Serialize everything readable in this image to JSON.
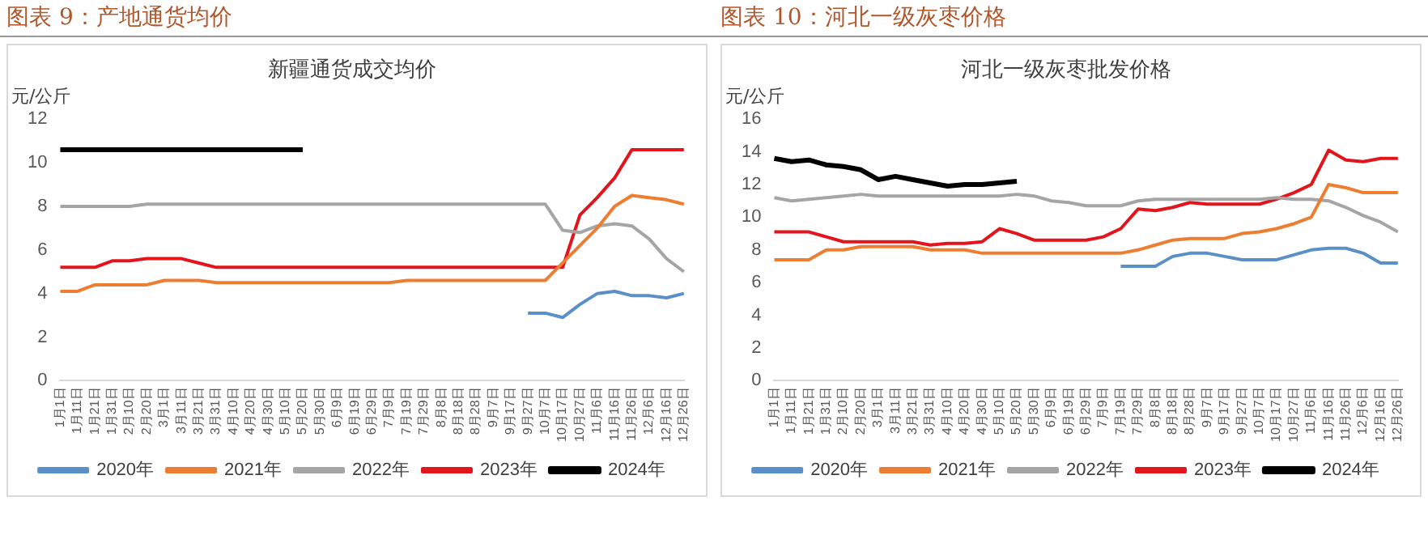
{
  "chart_data": [
    {
      "type": "line",
      "title": "图表 9：产地通货均价",
      "subtitle": "新疆通货成交均价",
      "ylabel": "元/公斤",
      "categories": [
        "1月1日",
        "1月11日",
        "1月21日",
        "1月31日",
        "2月10日",
        "2月20日",
        "3月1日",
        "3月11日",
        "3月21日",
        "3月31日",
        "4月10日",
        "4月20日",
        "4月30日",
        "5月10日",
        "5月20日",
        "5月30日",
        "6月9日",
        "6月19日",
        "6月29日",
        "7月9日",
        "7月19日",
        "7月29日",
        "8月8日",
        "8月18日",
        "8月28日",
        "9月7日",
        "9月17日",
        "9月27日",
        "10月7日",
        "10月17日",
        "10月27日",
        "11月6日",
        "11月16日",
        "11月26日",
        "12月6日",
        "12月16日",
        "12月26日"
      ],
      "ylim": [
        0,
        12
      ],
      "yticks": [
        0,
        2,
        4,
        6,
        8,
        10,
        12
      ],
      "grid": false,
      "legend": "bottom",
      "marker": "none",
      "line_style": "solid",
      "series": [
        {
          "name": "2020年",
          "color": "#5b8fc7",
          "values": [
            null,
            null,
            null,
            null,
            null,
            null,
            null,
            null,
            null,
            null,
            null,
            null,
            null,
            null,
            null,
            null,
            null,
            null,
            null,
            null,
            null,
            null,
            null,
            null,
            null,
            null,
            null,
            3.1,
            3.1,
            2.9,
            3.5,
            4.0,
            4.1,
            3.9,
            3.9,
            3.8,
            4.0
          ]
        },
        {
          "name": "2021年",
          "color": "#ed7d31",
          "values": [
            4.1,
            4.1,
            4.4,
            4.4,
            4.4,
            4.4,
            4.6,
            4.6,
            4.6,
            4.5,
            4.5,
            4.5,
            4.5,
            4.5,
            4.5,
            4.5,
            4.5,
            4.5,
            4.5,
            4.5,
            4.6,
            4.6,
            4.6,
            4.6,
            4.6,
            4.6,
            4.6,
            4.6,
            4.6,
            5.4,
            6.2,
            7.0,
            8.0,
            8.5,
            8.4,
            8.3,
            8.1
          ]
        },
        {
          "name": "2022年",
          "color": "#a5a5a5",
          "values": [
            8.0,
            8.0,
            8.0,
            8.0,
            8.0,
            8.1,
            8.1,
            8.1,
            8.1,
            8.1,
            8.1,
            8.1,
            8.1,
            8.1,
            8.1,
            8.1,
            8.1,
            8.1,
            8.1,
            8.1,
            8.1,
            8.1,
            8.1,
            8.1,
            8.1,
            8.1,
            8.1,
            8.1,
            8.1,
            6.9,
            6.8,
            7.1,
            7.2,
            7.1,
            6.5,
            5.6,
            5.0
          ]
        },
        {
          "name": "2023年",
          "color": "#e3141b",
          "values": [
            5.2,
            5.2,
            5.2,
            5.5,
            5.5,
            5.6,
            5.6,
            5.6,
            5.4,
            5.2,
            5.2,
            5.2,
            5.2,
            5.2,
            5.2,
            5.2,
            5.2,
            5.2,
            5.2,
            5.2,
            5.2,
            5.2,
            5.2,
            5.2,
            5.2,
            5.2,
            5.2,
            5.2,
            5.2,
            5.2,
            7.6,
            8.4,
            9.3,
            10.6,
            10.6,
            10.6,
            10.6
          ]
        },
        {
          "name": "2024年",
          "color": "#000000",
          "values": [
            10.6,
            10.6,
            10.6,
            10.6,
            10.6,
            10.6,
            10.6,
            10.6,
            10.6,
            10.6,
            10.6,
            10.6,
            10.6,
            10.6,
            10.6,
            null,
            null,
            null,
            null,
            null,
            null,
            null,
            null,
            null,
            null,
            null,
            null,
            null,
            null,
            null,
            null,
            null,
            null,
            null,
            null,
            null,
            null
          ]
        }
      ]
    },
    {
      "type": "line",
      "title": "图表 10：河北一级灰枣价格",
      "subtitle": "河北一级灰枣批发价格",
      "ylabel": "元/公斤",
      "categories": [
        "1月1日",
        "1月11日",
        "1月21日",
        "1月31日",
        "2月10日",
        "2月20日",
        "3月1日",
        "3月11日",
        "3月21日",
        "3月31日",
        "4月10日",
        "4月20日",
        "4月30日",
        "5月10日",
        "5月20日",
        "5月30日",
        "6月9日",
        "6月19日",
        "6月29日",
        "7月9日",
        "7月19日",
        "7月29日",
        "8月8日",
        "8月18日",
        "8月28日",
        "9月7日",
        "9月17日",
        "9月27日",
        "10月7日",
        "10月17日",
        "10月27日",
        "11月6日",
        "11月16日",
        "11月26日",
        "12月6日",
        "12月16日",
        "12月26日"
      ],
      "ylim": [
        0,
        16
      ],
      "yticks": [
        0,
        2,
        4,
        6,
        8,
        10,
        12,
        14,
        16
      ],
      "grid": false,
      "legend": "bottom",
      "marker": "none",
      "line_style": "solid",
      "series": [
        {
          "name": "2020年",
          "color": "#5b8fc7",
          "values": [
            null,
            null,
            null,
            null,
            null,
            null,
            null,
            null,
            null,
            null,
            null,
            null,
            null,
            null,
            null,
            null,
            null,
            null,
            null,
            null,
            7.0,
            7.0,
            7.0,
            7.6,
            7.8,
            7.8,
            7.6,
            7.4,
            7.4,
            7.4,
            7.7,
            8.0,
            8.1,
            8.1,
            7.8,
            7.2,
            7.2
          ]
        },
        {
          "name": "2021年",
          "color": "#ed7d31",
          "values": [
            7.4,
            7.4,
            7.4,
            8.0,
            8.0,
            8.2,
            8.2,
            8.2,
            8.2,
            8.0,
            8.0,
            8.0,
            7.8,
            7.8,
            7.8,
            7.8,
            7.8,
            7.8,
            7.8,
            7.8,
            7.8,
            8.0,
            8.3,
            8.6,
            8.7,
            8.7,
            8.7,
            9.0,
            9.1,
            9.3,
            9.6,
            10.0,
            12.0,
            11.8,
            11.5,
            11.5,
            11.5
          ]
        },
        {
          "name": "2022年",
          "color": "#a5a5a5",
          "values": [
            11.2,
            11.0,
            11.1,
            11.2,
            11.3,
            11.4,
            11.3,
            11.3,
            11.3,
            11.3,
            11.3,
            11.3,
            11.3,
            11.3,
            11.4,
            11.3,
            11.0,
            10.9,
            10.7,
            10.7,
            10.7,
            11.0,
            11.1,
            11.1,
            11.1,
            11.1,
            11.1,
            11.1,
            11.1,
            11.2,
            11.1,
            11.1,
            11.0,
            10.6,
            10.1,
            9.7,
            9.1
          ]
        },
        {
          "name": "2023年",
          "color": "#e3141b",
          "values": [
            9.1,
            9.1,
            9.1,
            8.8,
            8.5,
            8.5,
            8.5,
            8.5,
            8.5,
            8.3,
            8.4,
            8.4,
            8.5,
            9.3,
            9.0,
            8.6,
            8.6,
            8.6,
            8.6,
            8.8,
            9.3,
            10.5,
            10.4,
            10.6,
            10.9,
            10.8,
            10.8,
            10.8,
            10.8,
            11.1,
            11.5,
            12.0,
            14.1,
            13.5,
            13.4,
            13.6,
            13.6
          ]
        },
        {
          "name": "2024年",
          "color": "#000000",
          "values": [
            13.6,
            13.4,
            13.5,
            13.2,
            13.1,
            12.9,
            12.3,
            12.5,
            12.3,
            12.1,
            11.9,
            12.0,
            12.0,
            12.1,
            12.2,
            null,
            null,
            null,
            null,
            null,
            null,
            null,
            null,
            null,
            null,
            null,
            null,
            null,
            null,
            null,
            null,
            null,
            null,
            null,
            null,
            null,
            null
          ]
        }
      ]
    }
  ]
}
